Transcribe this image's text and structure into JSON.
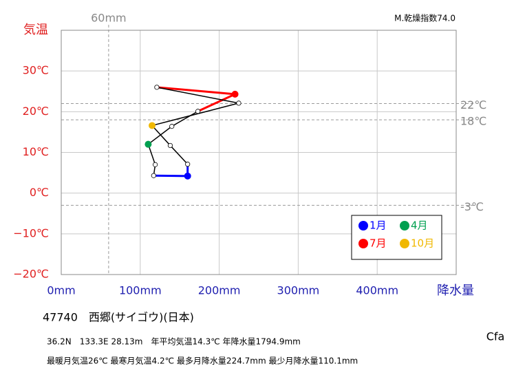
{
  "chart_data": {
    "type": "climograph",
    "y_label": "気温",
    "x_label": "降水量",
    "index_note": "M.乾燥指数74.0",
    "x": [
      160,
      117,
      119,
      110.1,
      140,
      173,
      220,
      121,
      224.7,
      115,
      138,
      160
    ],
    "y": [
      4.2,
      4.3,
      7.0,
      12.0,
      16.4,
      20.1,
      24.3,
      26.0,
      22.1,
      16.6,
      11.7,
      7.1
    ],
    "marker_colors": [
      "#0000ff",
      "#ffffff",
      "#ffffff",
      "#00a050",
      "#ffffff",
      "#ffffff",
      "#ff0000",
      "#ffffff",
      "#ffffff",
      "#f0b800",
      "#ffffff",
      "#ffffff"
    ],
    "legend": [
      {
        "name": "1月",
        "color": "#0000ff"
      },
      {
        "name": "4月",
        "color": "#00a050"
      },
      {
        "name": "7月",
        "color": "#ff0000"
      },
      {
        "name": "10月",
        "color": "#f0b800"
      }
    ],
    "xlim": [
      0,
      500
    ],
    "ylim": [
      -20,
      40
    ],
    "xticks": [
      {
        "value": 0,
        "label": "0mm"
      },
      {
        "value": 100,
        "label": "100mm"
      },
      {
        "value": 200,
        "label": "200mm"
      },
      {
        "value": 300,
        "label": "300mm"
      },
      {
        "value": 400,
        "label": "400mm"
      }
    ],
    "yticks": [
      {
        "value": -20,
        "label": "−20℃"
      },
      {
        "value": -10,
        "label": "−10℃"
      },
      {
        "value": 0,
        "label": "0℃"
      },
      {
        "value": 10,
        "label": "10℃"
      },
      {
        "value": 20,
        "label": "20℃"
      },
      {
        "value": 30,
        "label": "30℃"
      }
    ],
    "reference_lines": [
      {
        "axis": "x",
        "value": 60,
        "label": "60mm"
      },
      {
        "axis": "y",
        "value": 22,
        "label": "22℃"
      },
      {
        "axis": "y",
        "value": 18,
        "label": "18℃"
      },
      {
        "axis": "y",
        "value": -3,
        "label": "-3℃"
      }
    ],
    "grid": true,
    "station": "47740　西郷(サイゴウ)(日本)",
    "info_lines": [
      "36.2N　133.3E 28.13m　年平均気温14.3℃ 年降水量1794.9mm",
      "最暖月気温26℃ 最寒月気温4.2℃ 最多月降水量224.7mm 最少月降水量110.1mm"
    ],
    "climate_class": "Cfa"
  }
}
